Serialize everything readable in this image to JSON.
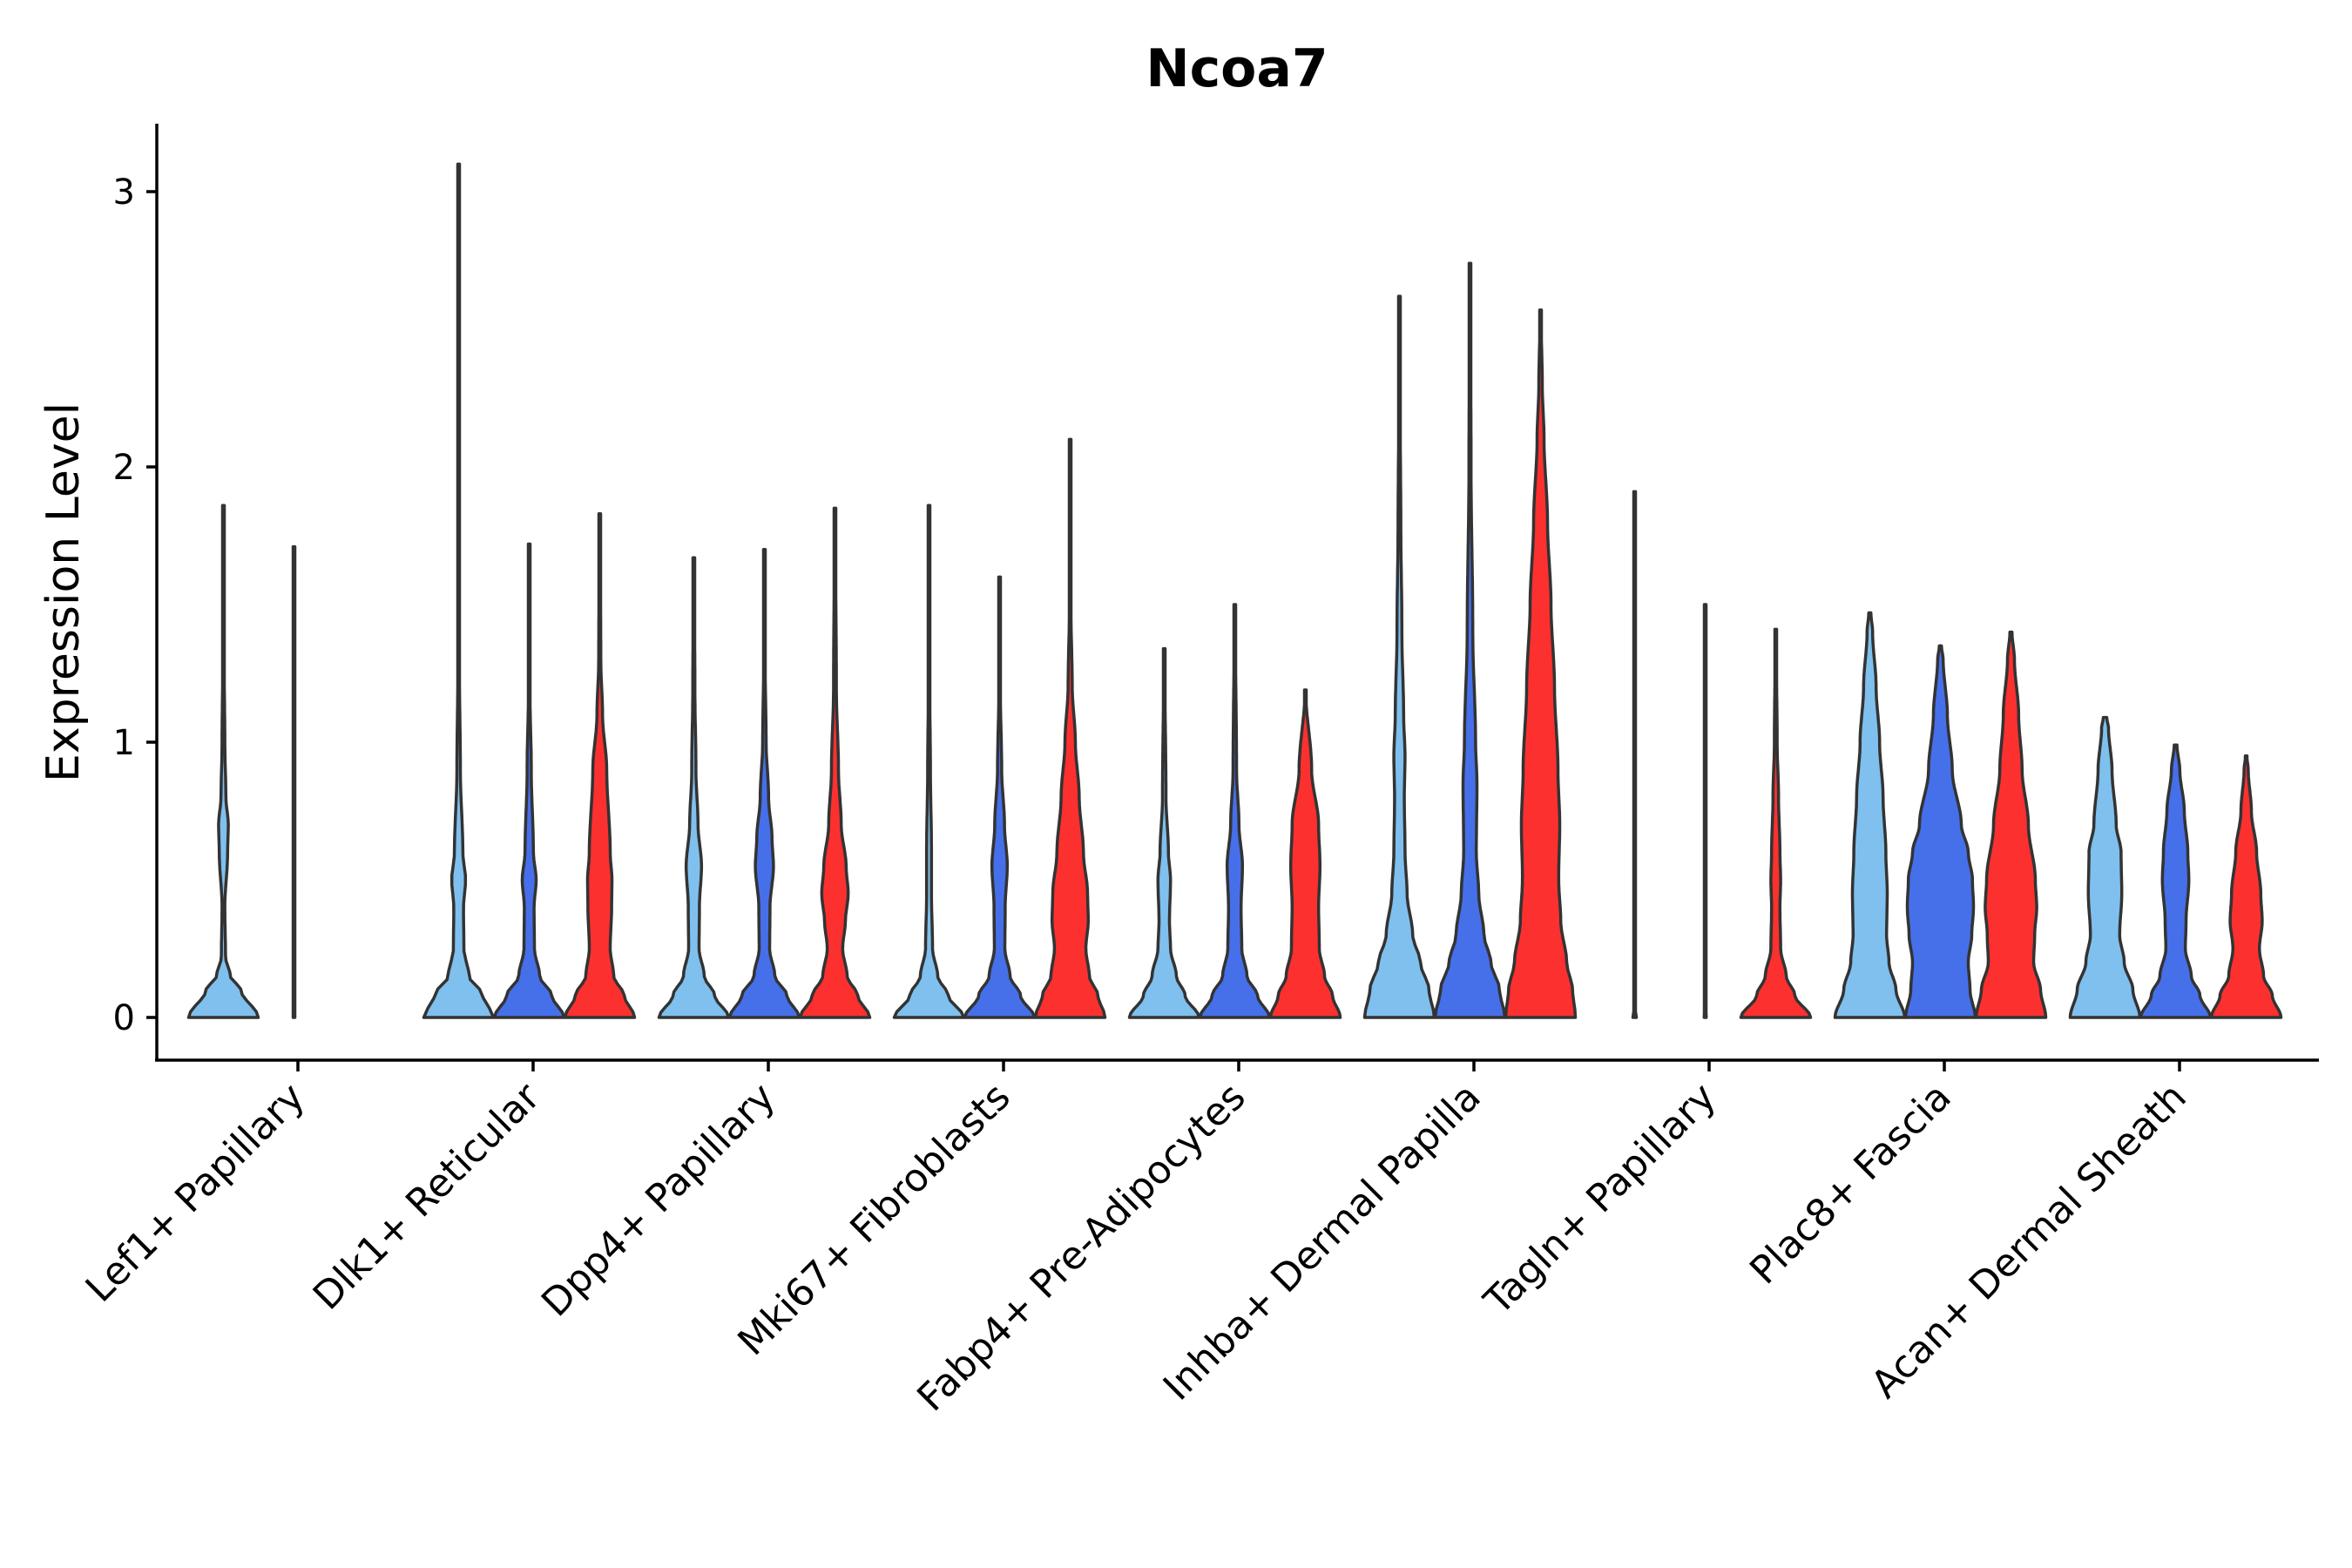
{
  "chart_data": {
    "type": "violin",
    "title": "Ncoa7",
    "xlabel": "",
    "ylabel": "Expression Level",
    "ylim": [
      -0.16,
      3.25
    ],
    "yticks": [
      0,
      1,
      2,
      3
    ],
    "colors": [
      "#7fc0ee",
      "#4670ea",
      "#fd3030"
    ],
    "categories": [
      "Lef1+ Papillary",
      "Dlk1+ Reticular",
      "Dpp4+ Papillary",
      "Mki67+ Fibroblasts",
      "Fabp4+ Pre-Adipocytes",
      "Inhba+ Dermal Papilla",
      "Tagln+ Papillary",
      "Plac8+ Fascia",
      "Acan+ Dermal Sheath"
    ],
    "violins": [
      [
        {
          "max": 1.86,
          "profile": [
            [
              0,
              1.0
            ],
            [
              0.1,
              0.5
            ],
            [
              0.15,
              0.2
            ],
            [
              0.22,
              0.06
            ],
            [
              0.4,
              0.04
            ],
            [
              0.6,
              0.12
            ],
            [
              0.7,
              0.14
            ],
            [
              0.8,
              0.07
            ],
            [
              1.0,
              0.04
            ],
            [
              1.3,
              0.02
            ],
            [
              1.86,
              0.01
            ]
          ]
        },
        {
          "max": 1.71,
          "profile": [
            [
              0,
              0.02
            ],
            [
              0.01,
              0.01
            ],
            [
              1.71,
              0.01
            ]
          ]
        },
        null
      ],
      [
        {
          "max": 3.1,
          "profile": [
            [
              0,
              1.0
            ],
            [
              0.08,
              0.7
            ],
            [
              0.15,
              0.3
            ],
            [
              0.25,
              0.15
            ],
            [
              0.4,
              0.14
            ],
            [
              0.5,
              0.2
            ],
            [
              0.6,
              0.12
            ],
            [
              0.9,
              0.05
            ],
            [
              1.3,
              0.02
            ],
            [
              3.1,
              0.01
            ]
          ]
        },
        {
          "max": 1.72,
          "profile": [
            [
              0,
              1.0
            ],
            [
              0.08,
              0.65
            ],
            [
              0.15,
              0.3
            ],
            [
              0.25,
              0.15
            ],
            [
              0.4,
              0.14
            ],
            [
              0.5,
              0.2
            ],
            [
              0.6,
              0.12
            ],
            [
              0.9,
              0.06
            ],
            [
              1.2,
              0.02
            ],
            [
              1.72,
              0.01
            ]
          ]
        },
        {
          "max": 1.83,
          "profile": [
            [
              0,
              1.0
            ],
            [
              0.08,
              0.7
            ],
            [
              0.15,
              0.4
            ],
            [
              0.25,
              0.3
            ],
            [
              0.4,
              0.34
            ],
            [
              0.5,
              0.35
            ],
            [
              0.6,
              0.3
            ],
            [
              0.9,
              0.2
            ],
            [
              1.1,
              0.08
            ],
            [
              1.3,
              0.03
            ],
            [
              1.83,
              0.01
            ]
          ]
        }
      ],
      [
        {
          "max": 1.67,
          "profile": [
            [
              0,
              1.0
            ],
            [
              0.08,
              0.6
            ],
            [
              0.15,
              0.3
            ],
            [
              0.25,
              0.15
            ],
            [
              0.4,
              0.16
            ],
            [
              0.55,
              0.22
            ],
            [
              0.7,
              0.12
            ],
            [
              0.9,
              0.06
            ],
            [
              1.2,
              0.03
            ],
            [
              1.67,
              0.01
            ]
          ]
        },
        {
          "max": 1.7,
          "profile": [
            [
              0,
              1.0
            ],
            [
              0.08,
              0.65
            ],
            [
              0.15,
              0.3
            ],
            [
              0.25,
              0.15
            ],
            [
              0.4,
              0.16
            ],
            [
              0.55,
              0.26
            ],
            [
              0.65,
              0.22
            ],
            [
              0.8,
              0.12
            ],
            [
              1.0,
              0.05
            ],
            [
              1.3,
              0.02
            ],
            [
              1.7,
              0.01
            ]
          ]
        },
        {
          "max": 1.85,
          "profile": [
            [
              0,
              1.0
            ],
            [
              0.08,
              0.65
            ],
            [
              0.15,
              0.35
            ],
            [
              0.25,
              0.22
            ],
            [
              0.35,
              0.3
            ],
            [
              0.45,
              0.38
            ],
            [
              0.55,
              0.32
            ],
            [
              0.7,
              0.18
            ],
            [
              0.9,
              0.1
            ],
            [
              1.2,
              0.04
            ],
            [
              1.85,
              0.01
            ]
          ]
        }
      ],
      [
        {
          "max": 1.86,
          "profile": [
            [
              0,
              1.0
            ],
            [
              0.08,
              0.55
            ],
            [
              0.15,
              0.25
            ],
            [
              0.25,
              0.1
            ],
            [
              0.45,
              0.07
            ],
            [
              0.6,
              0.07
            ],
            [
              0.9,
              0.04
            ],
            [
              1.2,
              0.02
            ],
            [
              1.86,
              0.01
            ]
          ]
        },
        {
          "max": 1.6,
          "profile": [
            [
              0,
              1.0
            ],
            [
              0.08,
              0.6
            ],
            [
              0.15,
              0.3
            ],
            [
              0.25,
              0.15
            ],
            [
              0.4,
              0.16
            ],
            [
              0.55,
              0.22
            ],
            [
              0.7,
              0.14
            ],
            [
              0.9,
              0.06
            ],
            [
              1.2,
              0.02
            ],
            [
              1.6,
              0.01
            ]
          ]
        },
        {
          "max": 2.1,
          "profile": [
            [
              0,
              1.0
            ],
            [
              0.08,
              0.8
            ],
            [
              0.15,
              0.55
            ],
            [
              0.25,
              0.45
            ],
            [
              0.35,
              0.52
            ],
            [
              0.45,
              0.5
            ],
            [
              0.6,
              0.38
            ],
            [
              0.8,
              0.26
            ],
            [
              1.0,
              0.15
            ],
            [
              1.2,
              0.06
            ],
            [
              1.5,
              0.02
            ],
            [
              2.1,
              0.01
            ]
          ]
        }
      ],
      [
        {
          "max": 1.34,
          "profile": [
            [
              0,
              1.0
            ],
            [
              0.08,
              0.6
            ],
            [
              0.15,
              0.35
            ],
            [
              0.25,
              0.18
            ],
            [
              0.35,
              0.15
            ],
            [
              0.5,
              0.18
            ],
            [
              0.6,
              0.12
            ],
            [
              0.8,
              0.05
            ],
            [
              1.34,
              0.01
            ]
          ]
        },
        {
          "max": 1.5,
          "profile": [
            [
              0,
              1.0
            ],
            [
              0.08,
              0.65
            ],
            [
              0.15,
              0.35
            ],
            [
              0.25,
              0.2
            ],
            [
              0.4,
              0.18
            ],
            [
              0.55,
              0.22
            ],
            [
              0.7,
              0.12
            ],
            [
              0.9,
              0.05
            ],
            [
              1.5,
              0.01
            ]
          ]
        },
        {
          "max": 1.19,
          "profile": [
            [
              0,
              1.0
            ],
            [
              0.08,
              0.78
            ],
            [
              0.15,
              0.55
            ],
            [
              0.25,
              0.4
            ],
            [
              0.4,
              0.38
            ],
            [
              0.55,
              0.42
            ],
            [
              0.7,
              0.38
            ],
            [
              0.9,
              0.18
            ],
            [
              1.19,
              0.01
            ]
          ]
        }
      ],
      [
        {
          "max": 2.62,
          "profile": [
            [
              0,
              1.0
            ],
            [
              0.1,
              0.85
            ],
            [
              0.2,
              0.6
            ],
            [
              0.3,
              0.38
            ],
            [
              0.45,
              0.22
            ],
            [
              0.6,
              0.16
            ],
            [
              0.8,
              0.14
            ],
            [
              0.95,
              0.16
            ],
            [
              1.1,
              0.12
            ],
            [
              1.4,
              0.07
            ],
            [
              1.8,
              0.04
            ],
            [
              2.2,
              0.02
            ],
            [
              2.62,
              0.01
            ]
          ]
        },
        {
          "max": 2.74,
          "profile": [
            [
              0,
              1.0
            ],
            [
              0.1,
              0.85
            ],
            [
              0.2,
              0.6
            ],
            [
              0.3,
              0.4
            ],
            [
              0.45,
              0.25
            ],
            [
              0.6,
              0.18
            ],
            [
              0.85,
              0.2
            ],
            [
              1.0,
              0.16
            ],
            [
              1.4,
              0.08
            ],
            [
              2.0,
              0.03
            ],
            [
              2.74,
              0.01
            ]
          ]
        },
        {
          "max": 2.57,
          "profile": [
            [
              0,
              1.0
            ],
            [
              0.1,
              0.92
            ],
            [
              0.2,
              0.75
            ],
            [
              0.35,
              0.58
            ],
            [
              0.5,
              0.52
            ],
            [
              0.7,
              0.55
            ],
            [
              0.9,
              0.5
            ],
            [
              1.2,
              0.4
            ],
            [
              1.5,
              0.3
            ],
            [
              1.8,
              0.2
            ],
            [
              2.1,
              0.1
            ],
            [
              2.3,
              0.05
            ],
            [
              2.57,
              0.01
            ]
          ]
        }
      ],
      [
        {
          "max": 1.91,
          "profile": [
            [
              0,
              0.05
            ],
            [
              0.01,
              0.01
            ],
            [
              1.91,
              0.01
            ]
          ]
        },
        {
          "max": 1.5,
          "profile": [
            [
              0,
              0.03
            ],
            [
              0.01,
              0.01
            ],
            [
              1.5,
              0.01
            ]
          ]
        },
        {
          "max": 1.41,
          "profile": [
            [
              0,
              1.0
            ],
            [
              0.08,
              0.55
            ],
            [
              0.15,
              0.3
            ],
            [
              0.25,
              0.14
            ],
            [
              0.4,
              0.12
            ],
            [
              0.5,
              0.14
            ],
            [
              0.6,
              0.12
            ],
            [
              0.8,
              0.08
            ],
            [
              1.0,
              0.04
            ],
            [
              1.41,
              0.01
            ]
          ]
        }
      ],
      [
        {
          "max": 1.47,
          "profile": [
            [
              0,
              1.0
            ],
            [
              0.1,
              0.75
            ],
            [
              0.2,
              0.55
            ],
            [
              0.3,
              0.48
            ],
            [
              0.45,
              0.5
            ],
            [
              0.6,
              0.46
            ],
            [
              0.8,
              0.38
            ],
            [
              1.0,
              0.28
            ],
            [
              1.2,
              0.18
            ],
            [
              1.4,
              0.08
            ],
            [
              1.47,
              0.03
            ]
          ]
        },
        {
          "max": 1.35,
          "profile": [
            [
              0,
              1.0
            ],
            [
              0.1,
              0.85
            ],
            [
              0.2,
              0.8
            ],
            [
              0.3,
              0.9
            ],
            [
              0.4,
              0.95
            ],
            [
              0.5,
              0.92
            ],
            [
              0.6,
              0.8
            ],
            [
              0.7,
              0.6
            ],
            [
              0.9,
              0.34
            ],
            [
              1.1,
              0.2
            ],
            [
              1.3,
              0.08
            ],
            [
              1.35,
              0.03
            ]
          ]
        },
        {
          "max": 1.4,
          "profile": [
            [
              0,
              1.0
            ],
            [
              0.1,
              0.85
            ],
            [
              0.2,
              0.65
            ],
            [
              0.3,
              0.68
            ],
            [
              0.4,
              0.74
            ],
            [
              0.5,
              0.7
            ],
            [
              0.7,
              0.5
            ],
            [
              0.9,
              0.32
            ],
            [
              1.1,
              0.22
            ],
            [
              1.3,
              0.1
            ],
            [
              1.4,
              0.03
            ]
          ]
        }
      ],
      [
        {
          "max": 1.09,
          "profile": [
            [
              0,
              1.0
            ],
            [
              0.1,
              0.8
            ],
            [
              0.2,
              0.55
            ],
            [
              0.3,
              0.42
            ],
            [
              0.45,
              0.48
            ],
            [
              0.6,
              0.46
            ],
            [
              0.7,
              0.32
            ],
            [
              0.9,
              0.2
            ],
            [
              1.05,
              0.1
            ],
            [
              1.09,
              0.05
            ]
          ]
        },
        {
          "max": 0.99,
          "profile": [
            [
              0,
              1.0
            ],
            [
              0.08,
              0.7
            ],
            [
              0.15,
              0.45
            ],
            [
              0.25,
              0.28
            ],
            [
              0.35,
              0.3
            ],
            [
              0.5,
              0.38
            ],
            [
              0.6,
              0.35
            ],
            [
              0.75,
              0.25
            ],
            [
              0.9,
              0.12
            ],
            [
              0.99,
              0.04
            ]
          ]
        },
        {
          "max": 0.95,
          "profile": [
            [
              0,
              1.0
            ],
            [
              0.08,
              0.75
            ],
            [
              0.15,
              0.5
            ],
            [
              0.25,
              0.38
            ],
            [
              0.35,
              0.46
            ],
            [
              0.45,
              0.42
            ],
            [
              0.6,
              0.3
            ],
            [
              0.75,
              0.15
            ],
            [
              0.9,
              0.06
            ],
            [
              0.95,
              0.02
            ]
          ]
        }
      ]
    ]
  }
}
